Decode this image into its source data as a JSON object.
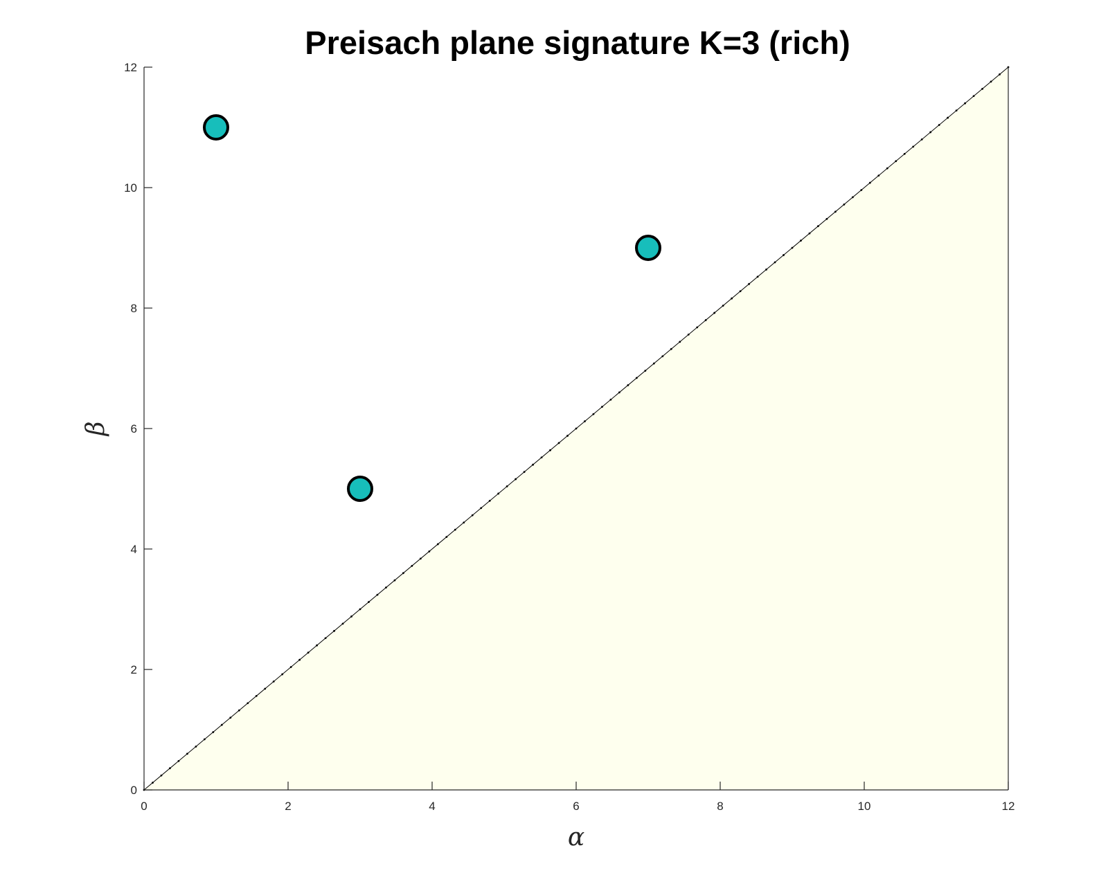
{
  "chart_data": {
    "type": "scatter",
    "title": "Preisach plane signature K=3 (rich)",
    "xlabel": "α",
    "ylabel": "β",
    "xlim": [
      0,
      12
    ],
    "ylim": [
      0,
      12
    ],
    "x_ticks": [
      0,
      2,
      4,
      6,
      8,
      10,
      12
    ],
    "y_ticks": [
      0,
      2,
      4,
      6,
      8,
      10,
      12
    ],
    "grid": false,
    "legend": "none",
    "series": [
      {
        "points": [
          {
            "x": 1,
            "y": 11
          },
          {
            "x": 3,
            "y": 5
          },
          {
            "x": 7,
            "y": 9
          }
        ],
        "marker_color": "#17BEBB",
        "edge_color": "#000000"
      }
    ],
    "diagonal_line": {
      "from": [
        0,
        0
      ],
      "to": [
        12,
        12
      ],
      "style": "dotted",
      "color": "#000000"
    },
    "region_below_diagonal": {
      "fill_color": "#FEFFEE"
    }
  }
}
